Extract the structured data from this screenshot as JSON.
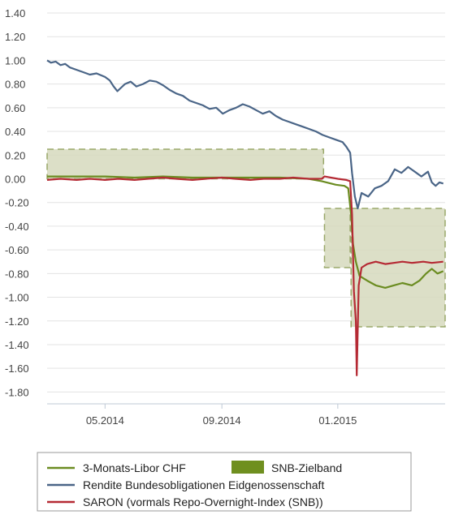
{
  "chart_data": {
    "type": "line",
    "title": "",
    "xlabel": "",
    "ylabel": "",
    "ylim": [
      -1.9,
      1.4
    ],
    "y_ticks": [
      "1.40",
      "1.20",
      "1.00",
      "0.80",
      "0.60",
      "0.40",
      "0.20",
      "0.00",
      "-0.20",
      "-0.40",
      "-0.60",
      "-0.80",
      "-1.00",
      "-1.20",
      "-1.40",
      "-1.60",
      "-1.80"
    ],
    "y_tick_values": [
      1.4,
      1.2,
      1.0,
      0.8,
      0.6,
      0.4,
      0.2,
      0.0,
      -0.2,
      -0.4,
      -0.6,
      -0.8,
      -1.0,
      -1.2,
      -1.4,
      -1.6,
      -1.8
    ],
    "x_ticks": [
      {
        "label": "05.2014",
        "date": "2014-05-01"
      },
      {
        "label": "09.2014",
        "date": "2014-09-01"
      },
      {
        "label": "01.2015",
        "date": "2015-01-01"
      }
    ],
    "x_range": [
      "2014-03-01",
      "2015-04-24"
    ],
    "grid": "horizontal",
    "legend_position": "bottom",
    "colors": {
      "libor": "#6b8c21",
      "rendite": "#4a6587",
      "saron": "#b52a34",
      "band_fill": "#d6d9bd",
      "band_edge": "#9aa86a",
      "legend_swatch": "#6f8f1f"
    },
    "series": [
      {
        "name": "3-Monats-Libor CHF",
        "color": "#6b8c21",
        "points": [
          [
            "2014-03-01",
            0.02
          ],
          [
            "2014-04-01",
            0.02
          ],
          [
            "2014-05-01",
            0.02
          ],
          [
            "2014-06-01",
            0.01
          ],
          [
            "2014-07-01",
            0.02
          ],
          [
            "2014-08-01",
            0.01
          ],
          [
            "2014-09-01",
            0.01
          ],
          [
            "2014-10-01",
            0.01
          ],
          [
            "2014-11-01",
            0.01
          ],
          [
            "2014-12-01",
            0.0
          ],
          [
            "2014-12-15",
            -0.02
          ],
          [
            "2014-12-30",
            -0.05
          ],
          [
            "2015-01-08",
            -0.06
          ],
          [
            "2015-01-12",
            -0.08
          ],
          [
            "2015-01-15",
            -0.3
          ],
          [
            "2015-01-17",
            -0.55
          ],
          [
            "2015-01-20",
            -0.7
          ],
          [
            "2015-01-24",
            -0.82
          ],
          [
            "2015-02-01",
            -0.86
          ],
          [
            "2015-02-10",
            -0.9
          ],
          [
            "2015-02-20",
            -0.92
          ],
          [
            "2015-03-01",
            -0.9
          ],
          [
            "2015-03-10",
            -0.88
          ],
          [
            "2015-03-20",
            -0.9
          ],
          [
            "2015-03-28",
            -0.86
          ],
          [
            "2015-04-04",
            -0.8
          ],
          [
            "2015-04-10",
            -0.76
          ],
          [
            "2015-04-16",
            -0.8
          ],
          [
            "2015-04-22",
            -0.78
          ]
        ]
      },
      {
        "name": "Rendite Bundesobligationen Eidgenossenschaft",
        "color": "#4a6587",
        "points": [
          [
            "2014-03-01",
            1.0
          ],
          [
            "2014-03-05",
            0.98
          ],
          [
            "2014-03-10",
            0.99
          ],
          [
            "2014-03-15",
            0.96
          ],
          [
            "2014-03-20",
            0.97
          ],
          [
            "2014-03-25",
            0.94
          ],
          [
            "2014-04-01",
            0.92
          ],
          [
            "2014-04-08",
            0.9
          ],
          [
            "2014-04-15",
            0.88
          ],
          [
            "2014-04-22",
            0.89
          ],
          [
            "2014-05-01",
            0.86
          ],
          [
            "2014-05-06",
            0.83
          ],
          [
            "2014-05-10",
            0.78
          ],
          [
            "2014-05-14",
            0.74
          ],
          [
            "2014-05-18",
            0.77
          ],
          [
            "2014-05-22",
            0.8
          ],
          [
            "2014-05-28",
            0.82
          ],
          [
            "2014-06-03",
            0.78
          ],
          [
            "2014-06-10",
            0.8
          ],
          [
            "2014-06-17",
            0.83
          ],
          [
            "2014-06-24",
            0.82
          ],
          [
            "2014-07-01",
            0.79
          ],
          [
            "2014-07-08",
            0.75
          ],
          [
            "2014-07-15",
            0.72
          ],
          [
            "2014-07-22",
            0.7
          ],
          [
            "2014-07-29",
            0.66
          ],
          [
            "2014-08-05",
            0.64
          ],
          [
            "2014-08-12",
            0.62
          ],
          [
            "2014-08-19",
            0.59
          ],
          [
            "2014-08-26",
            0.6
          ],
          [
            "2014-09-02",
            0.55
          ],
          [
            "2014-09-09",
            0.58
          ],
          [
            "2014-09-16",
            0.6
          ],
          [
            "2014-09-23",
            0.63
          ],
          [
            "2014-09-30",
            0.61
          ],
          [
            "2014-10-07",
            0.58
          ],
          [
            "2014-10-14",
            0.55
          ],
          [
            "2014-10-21",
            0.57
          ],
          [
            "2014-10-28",
            0.53
          ],
          [
            "2014-11-04",
            0.5
          ],
          [
            "2014-11-11",
            0.48
          ],
          [
            "2014-11-18",
            0.46
          ],
          [
            "2014-11-25",
            0.44
          ],
          [
            "2014-12-02",
            0.42
          ],
          [
            "2014-12-09",
            0.4
          ],
          [
            "2014-12-16",
            0.37
          ],
          [
            "2014-12-23",
            0.35
          ],
          [
            "2014-12-30",
            0.33
          ],
          [
            "2015-01-06",
            0.31
          ],
          [
            "2015-01-10",
            0.27
          ],
          [
            "2015-01-14",
            0.22
          ],
          [
            "2015-01-16",
            0.05
          ],
          [
            "2015-01-19",
            -0.15
          ],
          [
            "2015-01-22",
            -0.25
          ],
          [
            "2015-01-26",
            -0.12
          ],
          [
            "2015-02-02",
            -0.15
          ],
          [
            "2015-02-09",
            -0.08
          ],
          [
            "2015-02-16",
            -0.06
          ],
          [
            "2015-02-23",
            -0.02
          ],
          [
            "2015-03-02",
            0.08
          ],
          [
            "2015-03-09",
            0.05
          ],
          [
            "2015-03-16",
            0.1
          ],
          [
            "2015-03-23",
            0.06
          ],
          [
            "2015-03-30",
            0.02
          ],
          [
            "2015-04-06",
            0.06
          ],
          [
            "2015-04-10",
            -0.03
          ],
          [
            "2015-04-14",
            -0.06
          ],
          [
            "2015-04-18",
            -0.03
          ],
          [
            "2015-04-22",
            -0.04
          ]
        ]
      },
      {
        "name": "SARON (vormals Repo-Overnight-Index (SNB))",
        "color": "#b52a34",
        "points": [
          [
            "2014-03-01",
            -0.01
          ],
          [
            "2014-03-15",
            0.0
          ],
          [
            "2014-04-01",
            -0.01
          ],
          [
            "2014-04-15",
            0.0
          ],
          [
            "2014-05-01",
            -0.01
          ],
          [
            "2014-05-15",
            0.0
          ],
          [
            "2014-06-01",
            -0.01
          ],
          [
            "2014-06-15",
            0.0
          ],
          [
            "2014-07-01",
            0.01
          ],
          [
            "2014-07-15",
            0.0
          ],
          [
            "2014-08-01",
            -0.01
          ],
          [
            "2014-08-15",
            0.0
          ],
          [
            "2014-09-01",
            0.01
          ],
          [
            "2014-09-15",
            0.0
          ],
          [
            "2014-10-01",
            -0.01
          ],
          [
            "2014-10-15",
            0.0
          ],
          [
            "2014-11-01",
            0.0
          ],
          [
            "2014-11-15",
            0.01
          ],
          [
            "2014-12-01",
            0.0
          ],
          [
            "2014-12-15",
            0.0
          ],
          [
            "2014-12-18",
            0.02
          ],
          [
            "2015-01-01",
            0.0
          ],
          [
            "2015-01-10",
            -0.01
          ],
          [
            "2015-01-14",
            -0.02
          ],
          [
            "2015-01-16",
            -0.3
          ],
          [
            "2015-01-18",
            -0.95
          ],
          [
            "2015-01-20",
            -1.2
          ],
          [
            "2015-01-21",
            -1.66
          ],
          [
            "2015-01-23",
            -0.9
          ],
          [
            "2015-01-26",
            -0.75
          ],
          [
            "2015-02-01",
            -0.72
          ],
          [
            "2015-02-10",
            -0.7
          ],
          [
            "2015-02-20",
            -0.72
          ],
          [
            "2015-03-01",
            -0.71
          ],
          [
            "2015-03-10",
            -0.7
          ],
          [
            "2015-03-20",
            -0.71
          ],
          [
            "2015-04-01",
            -0.7
          ],
          [
            "2015-04-10",
            -0.71
          ],
          [
            "2015-04-22",
            -0.7
          ]
        ]
      }
    ],
    "band": {
      "name": "SNB-Zielband",
      "segments": [
        {
          "from": "2014-03-01",
          "to": "2014-12-17",
          "low": 0.0,
          "high": 0.25
        },
        {
          "from": "2014-12-18",
          "to": "2015-01-14",
          "low": -0.75,
          "high": -0.25
        },
        {
          "from": "2015-01-15",
          "to": "2015-04-24",
          "low": -1.25,
          "high": -0.25
        }
      ]
    }
  },
  "legend": {
    "libor": "3-Monats-Libor CHF",
    "band": "SNB-Zielband",
    "rendite": "Rendite Bundesobligationen Eidgenossenschaft",
    "saron": "SARON (vormals Repo-Overnight-Index (SNB))"
  }
}
